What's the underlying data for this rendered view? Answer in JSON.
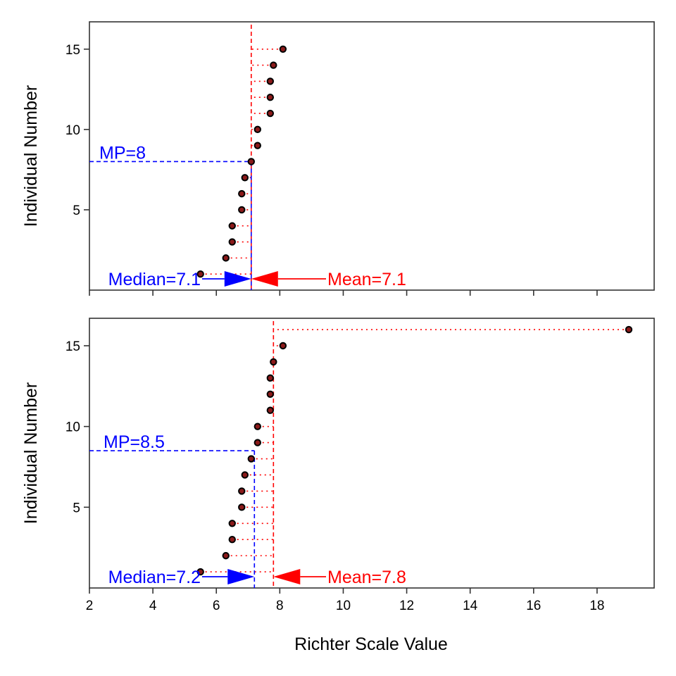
{
  "chart_data": [
    {
      "type": "scatter",
      "panel": "top",
      "xlabel": "",
      "ylabel": "Individual Number",
      "xlim": [
        2,
        19.8
      ],
      "ylim": [
        0,
        16.7
      ],
      "xticks": [
        2,
        4,
        6,
        8,
        10,
        12,
        14,
        16,
        18
      ],
      "xtick_labels": [],
      "yticks": [
        5,
        10,
        15
      ],
      "ytick_labels": [
        "5",
        "10",
        "15"
      ],
      "grid": false,
      "colors": {
        "mean": "#ff0000",
        "median": "#0000ff",
        "points": "#000000",
        "point_fill": "#8b1a1a"
      },
      "points": [
        {
          "x": 5.5,
          "y": 1
        },
        {
          "x": 6.3,
          "y": 2
        },
        {
          "x": 6.5,
          "y": 3
        },
        {
          "x": 6.5,
          "y": 4
        },
        {
          "x": 6.8,
          "y": 5
        },
        {
          "x": 6.8,
          "y": 6
        },
        {
          "x": 6.9,
          "y": 7
        },
        {
          "x": 7.1,
          "y": 8
        },
        {
          "x": 7.3,
          "y": 9
        },
        {
          "x": 7.3,
          "y": 10
        },
        {
          "x": 7.7,
          "y": 11
        },
        {
          "x": 7.7,
          "y": 12
        },
        {
          "x": 7.7,
          "y": 13
        },
        {
          "x": 7.8,
          "y": 14
        },
        {
          "x": 8.1,
          "y": 15
        }
      ],
      "mean": 7.1,
      "median": 7.1,
      "mp": 8,
      "labels": {
        "mean": "Mean=7.1",
        "median": "Median=7.1",
        "mp": "MP=8"
      }
    },
    {
      "type": "scatter",
      "panel": "bottom",
      "xlabel": "Richter Scale Value",
      "ylabel": "Individual Number",
      "xlim": [
        2,
        19.8
      ],
      "ylim": [
        0,
        16.7
      ],
      "xticks": [
        2,
        4,
        6,
        8,
        10,
        12,
        14,
        16,
        18
      ],
      "xtick_labels": [
        "2",
        "4",
        "6",
        "8",
        "10",
        "12",
        "14",
        "16",
        "18"
      ],
      "yticks": [
        5,
        10,
        15
      ],
      "ytick_labels": [
        "5",
        "10",
        "15"
      ],
      "grid": false,
      "colors": {
        "mean": "#ff0000",
        "median": "#0000ff",
        "points": "#000000",
        "point_fill": "#8b1a1a"
      },
      "points": [
        {
          "x": 5.5,
          "y": 1
        },
        {
          "x": 6.3,
          "y": 2
        },
        {
          "x": 6.5,
          "y": 3
        },
        {
          "x": 6.5,
          "y": 4
        },
        {
          "x": 6.8,
          "y": 5
        },
        {
          "x": 6.8,
          "y": 6
        },
        {
          "x": 6.9,
          "y": 7
        },
        {
          "x": 7.1,
          "y": 8
        },
        {
          "x": 7.3,
          "y": 9
        },
        {
          "x": 7.3,
          "y": 10
        },
        {
          "x": 7.7,
          "y": 11
        },
        {
          "x": 7.7,
          "y": 12
        },
        {
          "x": 7.7,
          "y": 13
        },
        {
          "x": 7.8,
          "y": 14
        },
        {
          "x": 8.1,
          "y": 15
        },
        {
          "x": 19.0,
          "y": 16
        }
      ],
      "mean": 7.8,
      "median": 7.2,
      "mp": 8.5,
      "labels": {
        "mean": "Mean=7.8",
        "median": "Median=7.2",
        "mp": "MP=8.5"
      }
    }
  ]
}
